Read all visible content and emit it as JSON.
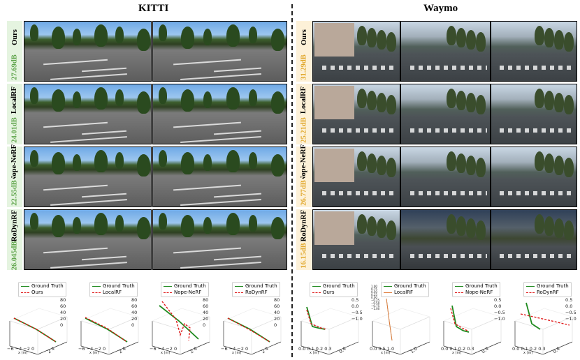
{
  "kitti": {
    "title": "KITTI",
    "rows": [
      {
        "name": "Ours",
        "psnr": "27.69dB"
      },
      {
        "name": "LocalRF",
        "psnr": "24.01dB"
      },
      {
        "name": "Nope-NeRF",
        "psnr": "22.55dB"
      },
      {
        "name": "RoDynRF",
        "psnr": "26.045dB"
      }
    ]
  },
  "waymo": {
    "title": "Waymo",
    "rows": [
      {
        "name": "Ours",
        "psnr": "31.29dB"
      },
      {
        "name": "LocalRF",
        "psnr": "25.21dB"
      },
      {
        "name": "Nope-NeRF",
        "psnr": "26.77dB"
      },
      {
        "name": "RoDynRF",
        "psnr": "16.15dB"
      }
    ]
  },
  "plots": [
    {
      "legend": [
        "Ground Truth",
        "Ours"
      ],
      "xticks": "−6 −4 −2  0",
      "xlab": "x (m)",
      "ytick": "2 4",
      "zticks": [
        "80",
        "60",
        "40",
        "20",
        "0"
      ]
    },
    {
      "legend": [
        "Ground Truth",
        "LocalRF"
      ],
      "xticks": "−6 −4 −2  0",
      "xlab": "x (m)",
      "ytick": "2 4",
      "zticks": [
        "80",
        "60",
        "40",
        "20",
        "0"
      ]
    },
    {
      "legend": [
        "Ground Truth",
        "Nope-NeRF"
      ],
      "xticks": "−6 −4 −2  0",
      "xlab": "x (m)",
      "ytick": "2 4",
      "zticks": [
        "80",
        "60",
        "40",
        "20",
        "0"
      ]
    },
    {
      "legend": [
        "Ground Truth",
        "RoDynRF"
      ],
      "xticks": "−6 −4 −2  0",
      "xlab": "x (m)",
      "ytick": "2 4",
      "zticks": [
        "80",
        "60",
        "40",
        "20",
        "0"
      ]
    },
    {
      "legend": [
        "Ground Truth",
        "Ours"
      ],
      "xticks": "0.0 0.1 0.2 0.3",
      "xlab": "x (m)",
      "ytick": "0.4",
      "zticks": [
        "0.5",
        "0.0",
        "−0.5",
        "−1.0"
      ]
    },
    {
      "legend": [
        "Ground Truth",
        "LocalRF"
      ],
      "xticks": "0.0 0.5 1.0",
      "xlab": "x (m)",
      "ytick": "1.0",
      "zticks": [
        "1.00",
        "0.75",
        "0.50",
        "0.25",
        "0.00",
        "−0.25",
        "−0.50",
        "−0.75",
        "−1.00"
      ]
    },
    {
      "legend": [
        "Ground Truth",
        "Nope-NeRF"
      ],
      "xticks": "0.0 0.1 0.2 0.3",
      "xlab": "x (m)",
      "ytick": "0.4",
      "zticks": [
        "0.5",
        "0.0",
        "−0.5",
        "−1.0"
      ]
    },
    {
      "legend": [
        "Ground Truth",
        "RoDynRF"
      ],
      "xticks": "0.0 0.1 0.2 0.3",
      "xlab": "x (m)",
      "ytick": "0.4",
      "zticks": [
        "0.5",
        "0.0",
        "−0.5",
        "−1.0"
      ]
    }
  ],
  "colors": {
    "ground_truth": "#1e8a1e",
    "prediction": "#e01b1b",
    "kitti_label_bg": "#e5f4e0",
    "waymo_label_bg": "#fdf1d8"
  }
}
